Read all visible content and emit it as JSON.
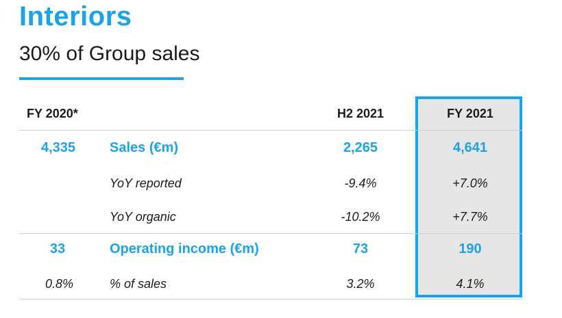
{
  "title": "Interiors",
  "subtitle": "30% of Group sales",
  "colors": {
    "accent": "#1aa3e8",
    "highlight_bg": "#e6e6e6"
  },
  "table": {
    "headers": {
      "fy2020": "FY 2020*",
      "h2_2021": "H2 2021",
      "fy2021": "FY 2021"
    },
    "rows": [
      {
        "fy2020": "4,335",
        "label": "Sales (€m)",
        "h2_2021": "2,265",
        "fy2021": "4,641"
      },
      {
        "fy2020": "",
        "label": "YoY reported",
        "h2_2021": "-9.4%",
        "fy2021": "+7.0%"
      },
      {
        "fy2020": "",
        "label": "YoY organic",
        "h2_2021": "-10.2%",
        "fy2021": "+7.7%"
      },
      {
        "fy2020": "33",
        "label": "Operating income (€m)",
        "h2_2021": "73",
        "fy2021": "190"
      },
      {
        "fy2020": "0.8%",
        "label": "% of sales",
        "h2_2021": "3.2%",
        "fy2021": "4.1%"
      }
    ]
  }
}
